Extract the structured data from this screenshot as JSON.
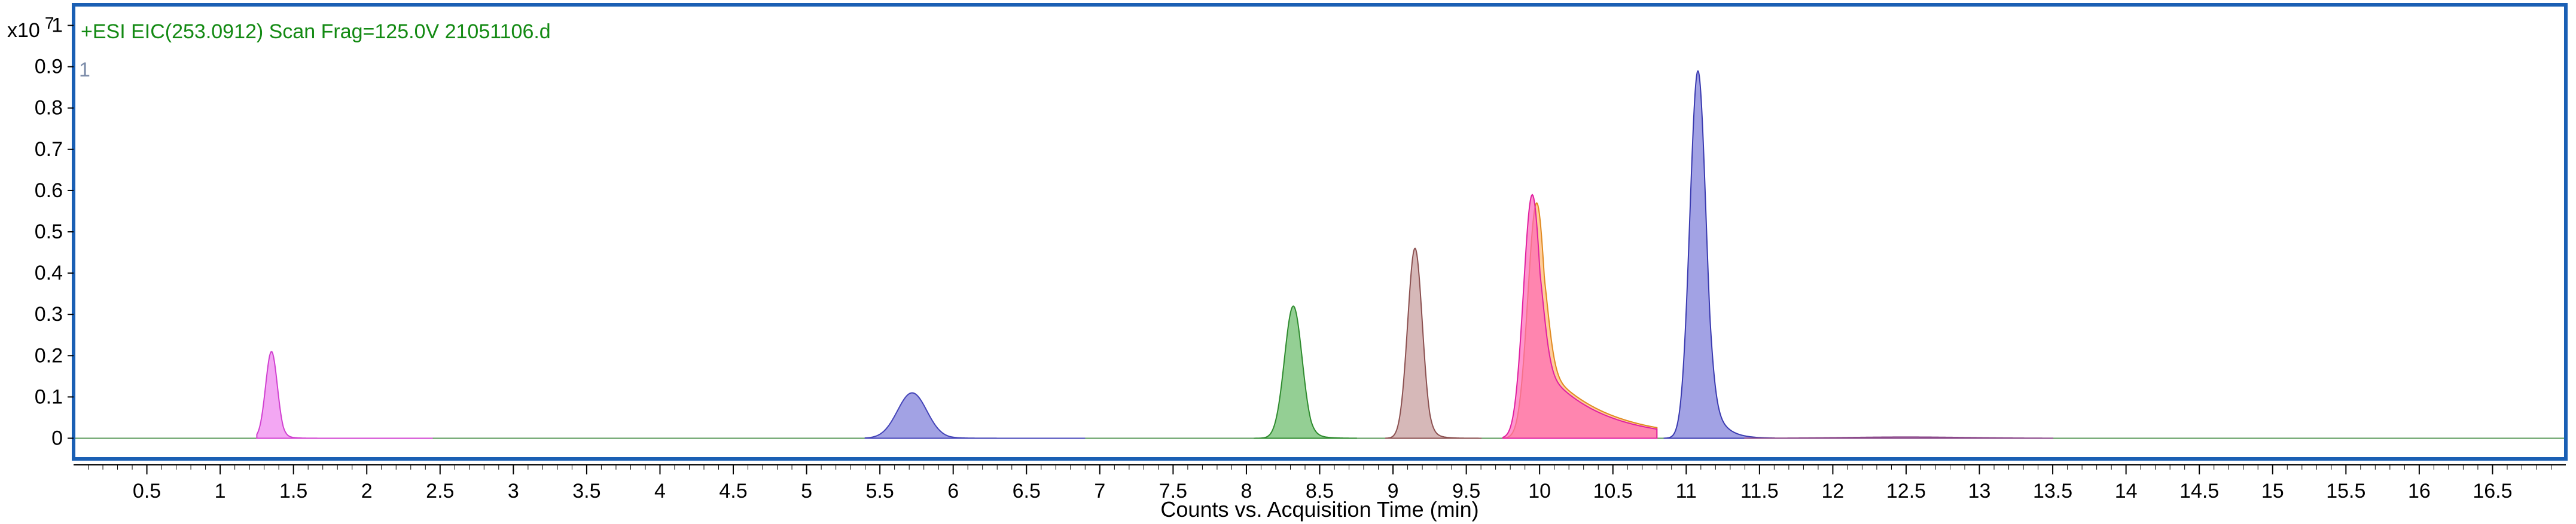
{
  "chart_data": {
    "type": "area",
    "title": "+ESI EIC(253.0912) Scan Frag=125.0V 21051106.d",
    "plot_number": "1",
    "ylabel": "x10 7",
    "xlabel": "Counts vs. Acquisition Time (min)",
    "xlim": [
      0,
      17
    ],
    "ylim": [
      -0.05,
      1.05
    ],
    "x_ticks": [
      0.5,
      1,
      1.5,
      2,
      2.5,
      3,
      3.5,
      4,
      4.5,
      5,
      5.5,
      6,
      6.5,
      7,
      7.5,
      8,
      8.5,
      9,
      9.5,
      10,
      10.5,
      11,
      11.5,
      12,
      12.5,
      13,
      13.5,
      14,
      14.5,
      15,
      15.5,
      16,
      16.5
    ],
    "x_tick_labels": [
      "0.5",
      "1",
      "1.5",
      "2",
      "2.5",
      "3",
      "3.5",
      "4",
      "4.5",
      "5",
      "5.5",
      "6",
      "6.5",
      "7",
      "7.5",
      "8",
      "8.5",
      "9",
      "9.5",
      "10",
      "10.5",
      "11",
      "11.5",
      "12",
      "12.5",
      "13",
      "13.5",
      "14",
      "14.5",
      "15",
      "15.5",
      "16",
      "16.5"
    ],
    "y_ticks": [
      0,
      0.1,
      0.2,
      0.3,
      0.4,
      0.5,
      0.6,
      0.7,
      0.8,
      0.9,
      1
    ],
    "y_tick_labels": [
      "0",
      "0.1",
      "0.2",
      "0.3",
      "0.4",
      "0.5",
      "0.6",
      "0.7",
      "0.8",
      "0.9",
      "1"
    ],
    "grid": false,
    "legend": "none",
    "series": [
      {
        "color": "#ee82ee",
        "stroke": "#d040d0",
        "peak_time": 1.35,
        "peak_height": 0.21,
        "sigma": 0.04,
        "tail": 0.04,
        "range": [
          1.25,
          2.45
        ]
      },
      {
        "color": "#7b7bd8",
        "stroke": "#4444b8",
        "peak_time": 5.72,
        "peak_height": 0.11,
        "sigma": 0.1,
        "tail": 0.08,
        "range": [
          5.4,
          6.9
        ]
      },
      {
        "color": "#66bb66",
        "stroke": "#2e8b2e",
        "peak_time": 8.32,
        "peak_height": 0.32,
        "sigma": 0.06,
        "tail": 0.06,
        "range": [
          8.05,
          8.75
        ]
      },
      {
        "color": "#c49a9a",
        "stroke": "#8b5050",
        "peak_time": 9.15,
        "peak_height": 0.46,
        "sigma": 0.05,
        "tail": 0.05,
        "range": [
          8.95,
          9.6
        ]
      },
      {
        "color": "#ffb870",
        "stroke": "#e08a20",
        "peak_time": 9.98,
        "peak_height": 0.57,
        "sigma": 0.06,
        "tail": 0.4,
        "range": [
          9.75,
          10.8
        ]
      },
      {
        "color": "#ff66b8",
        "stroke": "#e020a0",
        "peak_time": 9.95,
        "peak_height": 0.59,
        "sigma": 0.06,
        "tail": 0.38,
        "range": [
          9.75,
          10.8
        ]
      },
      {
        "color": "#7b7bd8",
        "stroke": "#3a3ab0",
        "peak_time": 11.08,
        "peak_height": 0.89,
        "sigma": 0.055,
        "tail": 0.08,
        "range": [
          10.85,
          11.6
        ]
      },
      {
        "color": "#c090c0",
        "stroke": "#8b4a8b",
        "peak_time": 12.5,
        "peak_height": 0.003,
        "sigma": 0.4,
        "tail": 0.2,
        "range": [
          11.4,
          13.5
        ]
      }
    ]
  }
}
